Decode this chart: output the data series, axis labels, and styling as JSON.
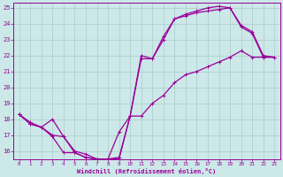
{
  "xlabel": "Windchill (Refroidissement éolien,°C)",
  "bg_color": "#cce8e8",
  "grid_color": "#aacccc",
  "line_color": "#990099",
  "xlim": [
    -0.5,
    23.5
  ],
  "ylim": [
    15.5,
    25.3
  ],
  "xticks": [
    0,
    1,
    2,
    3,
    4,
    5,
    6,
    7,
    8,
    9,
    10,
    11,
    12,
    13,
    14,
    15,
    16,
    17,
    18,
    19,
    20,
    21,
    22,
    23
  ],
  "yticks": [
    16,
    17,
    18,
    19,
    20,
    21,
    22,
    23,
    24,
    25
  ],
  "curve1_x": [
    0,
    1,
    2,
    3,
    4,
    5,
    6,
    7,
    8,
    9,
    10,
    11,
    12,
    13,
    14,
    15,
    16,
    17,
    18,
    19,
    20,
    21,
    22,
    23
  ],
  "curve1_y": [
    18.3,
    17.7,
    17.5,
    17.0,
    16.9,
    15.9,
    15.6,
    15.5,
    15.5,
    15.6,
    18.2,
    21.8,
    21.8,
    23.0,
    24.3,
    24.5,
    24.7,
    24.8,
    24.9,
    25.0,
    23.8,
    23.4,
    21.9,
    21.9
  ],
  "curve2_x": [
    0,
    1,
    2,
    3,
    4,
    5,
    6,
    7,
    8,
    9,
    10,
    11,
    12,
    13,
    14,
    15,
    16,
    17,
    18,
    19,
    20,
    21,
    22,
    23
  ],
  "curve2_y": [
    18.3,
    17.7,
    17.5,
    16.9,
    15.9,
    15.9,
    15.6,
    15.5,
    15.5,
    17.2,
    18.2,
    18.2,
    19.0,
    19.5,
    20.3,
    20.8,
    21.0,
    21.3,
    21.6,
    21.9,
    22.3,
    21.9,
    21.9,
    21.9
  ],
  "curve3_x": [
    0,
    1,
    2,
    3,
    4,
    5,
    6,
    7,
    8,
    9,
    10,
    11,
    12,
    13,
    14,
    15,
    16,
    17,
    18,
    19,
    20,
    21,
    22,
    23
  ],
  "curve3_y": [
    18.3,
    17.8,
    17.5,
    18.0,
    16.9,
    16.0,
    15.8,
    15.5,
    15.5,
    15.5,
    18.2,
    22.0,
    21.8,
    23.2,
    24.3,
    24.6,
    24.8,
    25.0,
    25.1,
    25.0,
    23.9,
    23.5,
    22.0,
    21.9
  ]
}
